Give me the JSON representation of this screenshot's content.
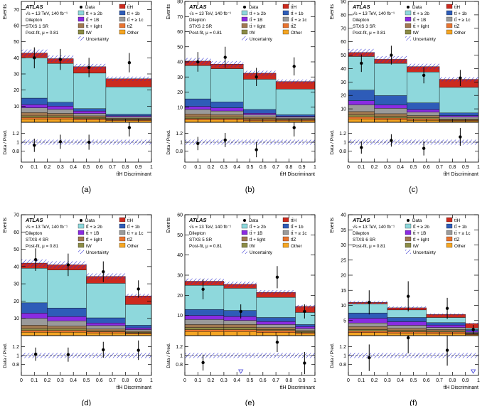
{
  "legend": {
    "experiment": "ATLAS",
    "energy": "√s = 13 TeV, 140 fb⁻¹",
    "channel": "Dilepton",
    "fit": "Post-fit, μ = 0.81",
    "data": "Data",
    "uncertainty": "Uncertainty"
  },
  "axis_labels": {
    "events": "Events",
    "ratio": "Data / Pred.",
    "x": "tt̄H Discriminant"
  },
  "chart_data": [
    {
      "type": "bar",
      "stacked": true,
      "caption": "(a)",
      "region": "STXS 1 SR",
      "x_edges": [
        0,
        0.2,
        0.4,
        0.65,
        1.0
      ],
      "x_ticks": [
        0,
        0.1,
        0.2,
        0.3,
        0.4,
        0.5,
        0.6,
        0.7,
        0.8,
        0.9,
        1
      ],
      "ylim": [
        0,
        75
      ],
      "y_ticks": [
        10,
        20,
        30,
        40,
        50,
        60,
        70
      ],
      "ratio_ticks": [
        0.8,
        1,
        1.2
      ],
      "series": [
        {
          "name": "Other",
          "color": "#f5a623",
          "values": [
            2,
            2,
            1.5,
            1
          ]
        },
        {
          "name": "tt̄Z",
          "color": "#e8732f",
          "values": [
            1,
            1,
            0.8,
            0.5
          ]
        },
        {
          "name": "tW",
          "color": "#8c8c46",
          "values": [
            1,
            1,
            0.7,
            0.5
          ]
        },
        {
          "name": "tt̄ + light",
          "color": "#a07850",
          "values": [
            2,
            1.5,
            1,
            0.5
          ]
        },
        {
          "name": "tt̄ + ≥ 1c",
          "color": "#9a9a9a",
          "values": [
            3,
            2.5,
            1.5,
            1
          ]
        },
        {
          "name": "tt̄ + 1B",
          "color": "#8a2be2",
          "values": [
            2,
            2,
            1.5,
            0.5
          ]
        },
        {
          "name": "tt̄ + 1b",
          "color": "#2e5cb8",
          "values": [
            4,
            2.5,
            1.5,
            1
          ]
        },
        {
          "name": "tt̄ + ≥ 2b",
          "color": "#8ed8dc",
          "values": [
            25,
            24,
            22,
            17
          ]
        },
        {
          "name": "tt̄H",
          "color": "#cc2a1e",
          "values": [
            3,
            3,
            4,
            5
          ]
        }
      ],
      "data": {
        "x": [
          0.1,
          0.3,
          0.52,
          0.83
        ],
        "y": [
          40,
          39,
          34,
          37
        ],
        "yerr": [
          6.5,
          6.5,
          6,
          6
        ]
      },
      "ratio": {
        "y": [
          0.93,
          1.01,
          1.0,
          1.33
        ],
        "yerr": [
          0.15,
          0.16,
          0.17,
          0.2
        ]
      }
    },
    {
      "type": "bar",
      "stacked": true,
      "caption": "(b)",
      "region": "STXS 2 SR",
      "x_edges": [
        0,
        0.2,
        0.45,
        0.7,
        1.0
      ],
      "x_ticks": [
        0,
        0.1,
        0.2,
        0.3,
        0.4,
        0.5,
        0.6,
        0.7,
        0.8,
        0.9,
        1
      ],
      "ylim": [
        0,
        80
      ],
      "y_ticks": [
        10,
        20,
        30,
        40,
        50,
        60,
        70,
        80
      ],
      "ratio_ticks": [
        0.8,
        1,
        1.2
      ],
      "series": [
        {
          "name": "Other",
          "color": "#f5a623",
          "values": [
            1.5,
            1.5,
            1,
            1
          ]
        },
        {
          "name": "tt̄Z",
          "color": "#e8732f",
          "values": [
            1,
            1,
            0.8,
            0.5
          ]
        },
        {
          "name": "tW",
          "color": "#8c8c46",
          "values": [
            1,
            1,
            0.7,
            0.5
          ]
        },
        {
          "name": "tt̄ + light",
          "color": "#a07850",
          "values": [
            2,
            1.5,
            1,
            0.5
          ]
        },
        {
          "name": "tt̄ + ≥ 1c",
          "color": "#9a9a9a",
          "values": [
            3,
            2.5,
            1.5,
            1
          ]
        },
        {
          "name": "tt̄ + 1B",
          "color": "#8a2be2",
          "values": [
            2,
            2,
            1,
            0.5
          ]
        },
        {
          "name": "tt̄ + 1b",
          "color": "#2e5cb8",
          "values": [
            5,
            4,
            2.5,
            1
          ]
        },
        {
          "name": "tt̄ + ≥ 2b",
          "color": "#8ed8dc",
          "values": [
            22,
            22,
            20,
            17
          ]
        },
        {
          "name": "tt̄H",
          "color": "#cc2a1e",
          "values": [
            3,
            3,
            4,
            5
          ]
        }
      ],
      "data": {
        "x": [
          0.1,
          0.31,
          0.55,
          0.84
        ],
        "y": [
          40,
          43,
          30,
          37
        ],
        "yerr": [
          6.5,
          7,
          6,
          6
        ]
      },
      "ratio": {
        "y": [
          0.97,
          1.05,
          0.83,
          1.33
        ],
        "yerr": [
          0.15,
          0.16,
          0.17,
          0.2
        ]
      }
    },
    {
      "type": "bar",
      "stacked": true,
      "caption": "(c)",
      "region": "STXS 3 SR",
      "x_edges": [
        0,
        0.2,
        0.45,
        0.7,
        1.0
      ],
      "x_ticks": [
        0,
        0.1,
        0.2,
        0.3,
        0.4,
        0.5,
        0.6,
        0.7,
        0.8,
        0.9,
        1
      ],
      "ylim": [
        0,
        90
      ],
      "y_ticks": [
        10,
        20,
        30,
        40,
        50,
        60,
        70,
        80,
        90
      ],
      "ratio_ticks": [
        0.8,
        1,
        1.2
      ],
      "series": [
        {
          "name": "Other",
          "color": "#f5a623",
          "values": [
            2.5,
            2,
            1.5,
            1
          ]
        },
        {
          "name": "tt̄Z",
          "color": "#e8732f",
          "values": [
            1.5,
            1.2,
            1,
            0.5
          ]
        },
        {
          "name": "tW",
          "color": "#8c8c46",
          "values": [
            1.5,
            1.2,
            1,
            0.5
          ]
        },
        {
          "name": "tt̄ + light",
          "color": "#a07850",
          "values": [
            2.5,
            2,
            1.5,
            0.5
          ]
        },
        {
          "name": "tt̄ + ≥ 1c",
          "color": "#9a9a9a",
          "values": [
            5,
            4,
            2.5,
            1.5
          ]
        },
        {
          "name": "tt̄ + 1B",
          "color": "#8a2be2",
          "values": [
            3,
            2.5,
            2,
            1
          ]
        },
        {
          "name": "tt̄ + 1b",
          "color": "#2e5cb8",
          "values": [
            8,
            7,
            5,
            2
          ]
        },
        {
          "name": "tt̄ + ≥ 2b",
          "color": "#8ed8dc",
          "values": [
            25,
            24,
            23,
            19
          ]
        },
        {
          "name": "tt̄H",
          "color": "#cc2a1e",
          "values": [
            3,
            3,
            4,
            6
          ]
        }
      ],
      "data": {
        "x": [
          0.1,
          0.33,
          0.58,
          0.86
        ],
        "y": [
          44,
          50,
          35,
          33
        ],
        "yerr": [
          6.5,
          7,
          6,
          6
        ]
      },
      "ratio": {
        "y": [
          0.88,
          1.04,
          0.86,
          1.12
        ],
        "yerr": [
          0.14,
          0.14,
          0.16,
          0.2
        ]
      }
    },
    {
      "type": "bar",
      "stacked": true,
      "caption": "(d)",
      "region": "STXS 4 SR",
      "x_edges": [
        0,
        0.2,
        0.5,
        0.8,
        1.0
      ],
      "x_ticks": [
        0,
        0.1,
        0.2,
        0.3,
        0.4,
        0.5,
        0.6,
        0.7,
        0.8,
        0.9,
        1
      ],
      "ylim": [
        0,
        70
      ],
      "y_ticks": [
        10,
        20,
        30,
        40,
        50,
        60,
        70
      ],
      "ratio_ticks": [
        0.8,
        1,
        1.2
      ],
      "series": [
        {
          "name": "Other",
          "color": "#f5a623",
          "values": [
            2,
            2,
            1.5,
            1
          ]
        },
        {
          "name": "tt̄Z",
          "color": "#e8732f",
          "values": [
            1,
            1,
            0.8,
            0.5
          ]
        },
        {
          "name": "tW",
          "color": "#8c8c46",
          "values": [
            1,
            1,
            0.5,
            0.5
          ]
        },
        {
          "name": "tt̄ + light",
          "color": "#a07850",
          "values": [
            2,
            1.5,
            1,
            0.5
          ]
        },
        {
          "name": "tt̄ + ≥ 1c",
          "color": "#9a9a9a",
          "values": [
            4,
            3,
            2,
            1
          ]
        },
        {
          "name": "tt̄ + 1B",
          "color": "#8a2be2",
          "values": [
            3,
            2.5,
            1.5,
            1
          ]
        },
        {
          "name": "tt̄ + 1b",
          "color": "#2e5cb8",
          "values": [
            6,
            5,
            3,
            1.5
          ]
        },
        {
          "name": "tt̄ + ≥ 2b",
          "color": "#8ed8dc",
          "values": [
            20,
            22,
            20,
            12
          ]
        },
        {
          "name": "tt̄H",
          "color": "#cc2a1e",
          "values": [
            3,
            3,
            4,
            5
          ]
        }
      ],
      "data": {
        "x": [
          0.11,
          0.36,
          0.63,
          0.9
        ],
        "y": [
          44,
          41,
          37,
          27
        ],
        "yerr": [
          6.5,
          6.5,
          6,
          5
        ]
      },
      "ratio": {
        "y": [
          1.03,
          1.02,
          1.13,
          1.12
        ],
        "yerr": [
          0.15,
          0.16,
          0.18,
          0.22
        ]
      }
    },
    {
      "type": "bar",
      "stacked": true,
      "caption": "(e)",
      "region": "STXS 5 SR",
      "x_edges": [
        0,
        0.3,
        0.55,
        0.85,
        1.0
      ],
      "x_ticks": [
        0,
        0.1,
        0.2,
        0.3,
        0.4,
        0.5,
        0.6,
        0.7,
        0.8,
        0.9,
        1
      ],
      "ylim": [
        0,
        60
      ],
      "y_ticks": [
        10,
        20,
        30,
        40,
        50,
        60
      ],
      "ratio_ticks": [
        0.8,
        1,
        1.2
      ],
      "series": [
        {
          "name": "Other",
          "color": "#f5a623",
          "values": [
            2,
            2,
            1.5,
            1
          ]
        },
        {
          "name": "tt̄Z",
          "color": "#e8732f",
          "values": [
            1,
            1,
            1,
            0.5
          ]
        },
        {
          "name": "tW",
          "color": "#8c8c46",
          "values": [
            1,
            1,
            0.5,
            0.5
          ]
        },
        {
          "name": "tt̄ + light",
          "color": "#a07850",
          "values": [
            1.5,
            1.5,
            1,
            0.5
          ]
        },
        {
          "name": "tt̄ + ≥ 1c",
          "color": "#9a9a9a",
          "values": [
            2.5,
            2,
            1.5,
            1
          ]
        },
        {
          "name": "tt̄ + 1B",
          "color": "#8a2be2",
          "values": [
            2,
            2,
            1.5,
            1
          ]
        },
        {
          "name": "tt̄ + 1b",
          "color": "#2e5cb8",
          "values": [
            3,
            3,
            2,
            1
          ]
        },
        {
          "name": "tt̄ + ≥ 2b",
          "color": "#8ed8dc",
          "values": [
            12,
            11,
            10,
            6
          ]
        },
        {
          "name": "tt̄H",
          "color": "#cc2a1e",
          "values": [
            2,
            2,
            2.5,
            3
          ]
        }
      ],
      "data": {
        "x": [
          0.14,
          0.43,
          0.71,
          0.92
        ],
        "y": [
          23,
          12,
          29,
          12
        ],
        "yerr": [
          5,
          3.5,
          5.5,
          3.5
        ]
      },
      "ratio": {
        "y": [
          0.84,
          null,
          1.3,
          0.83
        ],
        "yerr": [
          0.18,
          0,
          0.22,
          0.25
        ]
      },
      "ratio_markers": [
        {
          "x": 0.43,
          "type": "off-scale-arrow"
        }
      ]
    },
    {
      "type": "bar",
      "stacked": true,
      "caption": "(f)",
      "region": "STXS 6 SR",
      "x_edges": [
        0,
        0.3,
        0.6,
        0.9,
        1.0
      ],
      "x_ticks": [
        0,
        0.1,
        0.2,
        0.3,
        0.4,
        0.5,
        0.6,
        0.7,
        0.8,
        0.9,
        1
      ],
      "ylim": [
        0,
        40
      ],
      "y_ticks": [
        5,
        10,
        15,
        20,
        25,
        30,
        35,
        40
      ],
      "ratio_ticks": [
        0.8,
        1,
        1.2
      ],
      "series": [
        {
          "name": "Other",
          "color": "#f5a623",
          "values": [
            1,
            0.8,
            0.7,
            0.3
          ]
        },
        {
          "name": "tt̄Z",
          "color": "#e8732f",
          "values": [
            0.5,
            0.5,
            0.5,
            0.2
          ]
        },
        {
          "name": "tW",
          "color": "#8c8c46",
          "values": [
            0.5,
            0.4,
            0.3,
            0.1
          ]
        },
        {
          "name": "tt̄ + light",
          "color": "#a07850",
          "values": [
            1,
            0.7,
            0.5,
            0.2
          ]
        },
        {
          "name": "tt̄ + ≥ 1c",
          "color": "#9a9a9a",
          "values": [
            1.2,
            1,
            0.7,
            0.3
          ]
        },
        {
          "name": "tt̄ + 1B",
          "color": "#8a2be2",
          "values": [
            1.5,
            1.2,
            0.8,
            0.4
          ]
        },
        {
          "name": "tt̄ + 1b",
          "color": "#2e5cb8",
          "values": [
            1.8,
            1.4,
            0.8,
            0.5
          ]
        },
        {
          "name": "tt̄ + ≥ 2b",
          "color": "#8ed8dc",
          "values": [
            3,
            2.5,
            1.7,
            0.5
          ]
        },
        {
          "name": "tt̄H",
          "color": "#cc2a1e",
          "values": [
            0.5,
            0.7,
            1,
            1.5
          ]
        }
      ],
      "data": {
        "x": [
          0.16,
          0.46,
          0.76,
          0.96
        ],
        "y": [
          11,
          13,
          9,
          2
        ],
        "yerr": [
          4,
          5,
          3.5,
          1.5
        ]
      },
      "ratio": {
        "y": [
          0.95,
          1.4,
          1.12,
          null
        ],
        "yerr": [
          0.3,
          0.35,
          0.35,
          0
        ]
      },
      "ratio_markers": [
        {
          "x": 0.96,
          "type": "off-scale-arrow"
        }
      ]
    }
  ]
}
